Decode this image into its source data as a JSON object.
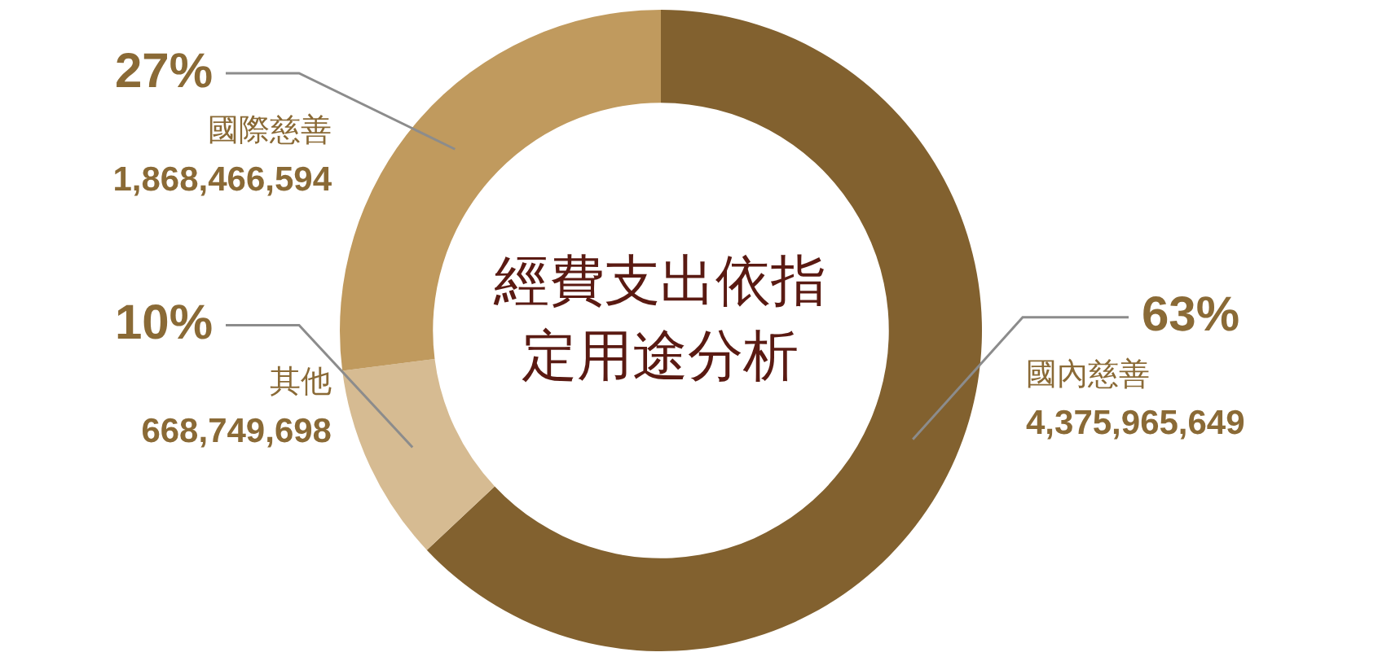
{
  "chart_data": {
    "type": "donut",
    "title": "經費支出依指定用途分析",
    "categories": [
      "國內慈善",
      "其他",
      "國際慈善"
    ],
    "values": [
      63,
      10,
      27
    ],
    "colors": [
      "#82612f",
      "#d6bb92",
      "#c09a5e"
    ],
    "value_labels": [
      "63%",
      "10%",
      "27%"
    ],
    "annotations": [
      "4,375,965,649",
      "668,749,698",
      "1,868,466,594"
    ]
  }
}
